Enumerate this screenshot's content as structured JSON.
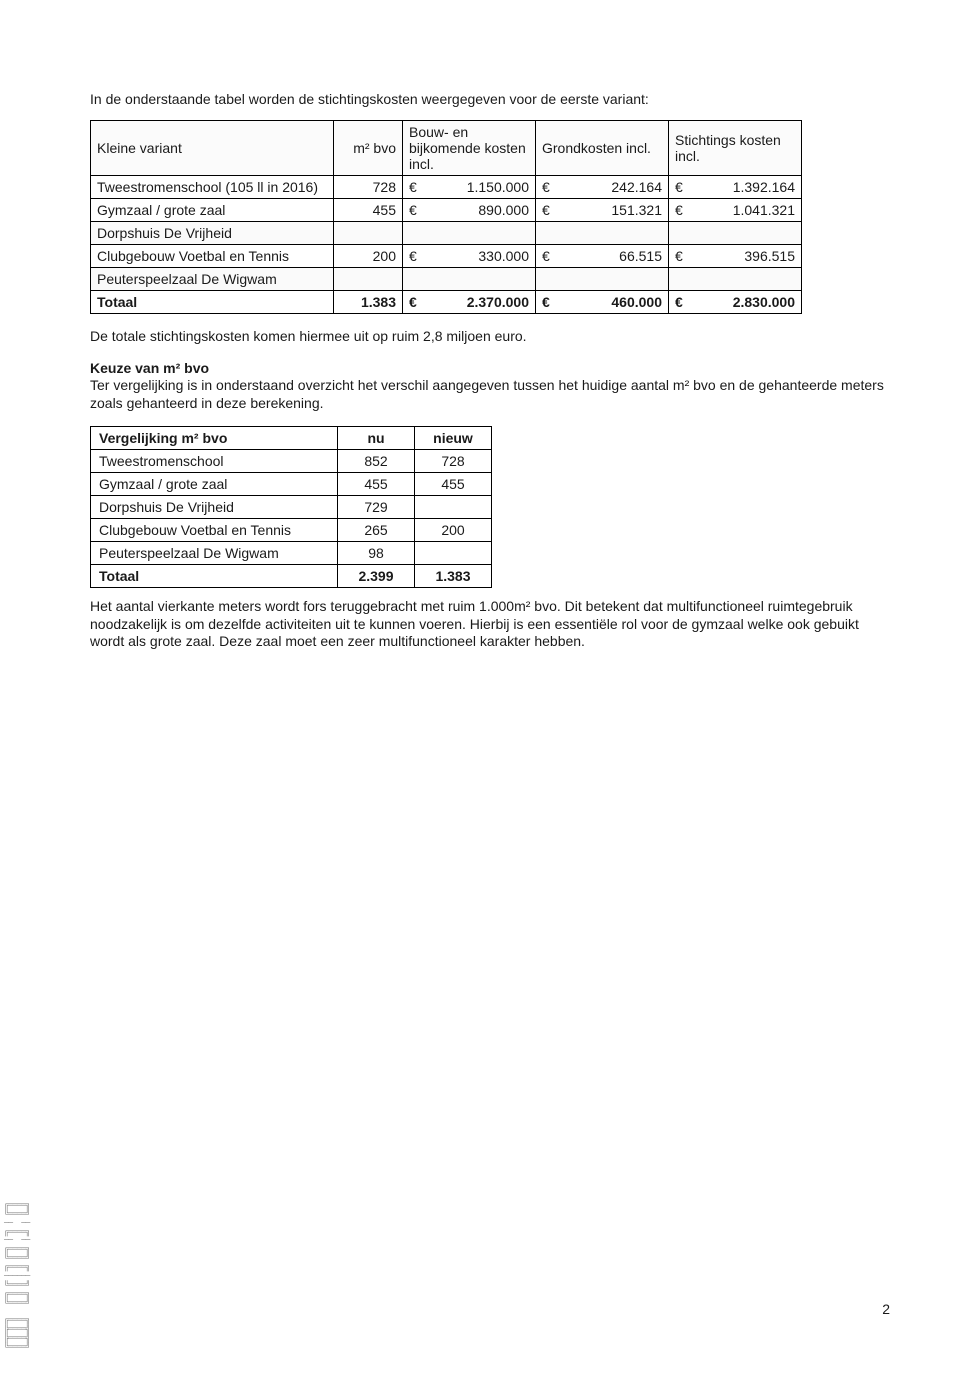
{
  "intro": "In de onderstaande tabel worden de stichtingskosten weergegeven voor de eerste variant:",
  "t1": {
    "headers": {
      "c0": "Kleine variant",
      "c1": "m² bvo",
      "c2": "Bouw- en bijkomende kosten incl.",
      "c3": "Grondkosten incl.",
      "c4": "Stichtings kosten incl."
    },
    "rows": [
      {
        "label": "Tweestromenschool (105 ll in 2016)",
        "m2": "728",
        "c2": "1.150.000",
        "c3": "242.164",
        "c4": "1.392.164"
      },
      {
        "label": "Gymzaal / grote zaal",
        "m2": "455",
        "c2": "890.000",
        "c3": "151.321",
        "c4": "1.041.321"
      },
      {
        "label": "Dorpshuis De Vrijheid",
        "m2": "",
        "c2": "",
        "c3": "",
        "c4": ""
      },
      {
        "label": "Clubgebouw Voetbal en Tennis",
        "m2": "200",
        "c2": "330.000",
        "c3": "66.515",
        "c4": "396.515"
      },
      {
        "label": "Peuterspeelzaal De Wigwam",
        "m2": "",
        "c2": "",
        "c3": "",
        "c4": ""
      }
    ],
    "total": {
      "label": "Totaal",
      "m2": "1.383",
      "c2": "2.370.000",
      "c3": "460.000",
      "c4": "2.830.000"
    }
  },
  "para1": "De totale stichtingskosten komen hiermee uit op ruim 2,8 miljoen euro.",
  "keuze_h": "Keuze van m² bvo",
  "keuze_p": "Ter vergelijking is in onderstaand overzicht het verschil aangegeven tussen het huidige aantal m² bvo en de gehanteerde meters zoals gehanteerd in deze berekening.",
  "t2": {
    "headers": {
      "c0": "Vergelijking m² bvo",
      "c1": "nu",
      "c2": "nieuw"
    },
    "rows": [
      {
        "label": "Tweestromenschool",
        "nu": "852",
        "nieuw": "728"
      },
      {
        "label": "Gymzaal / grote zaal",
        "nu": "455",
        "nieuw": "455"
      },
      {
        "label": "Dorpshuis De Vrijheid",
        "nu": "729",
        "nieuw": ""
      },
      {
        "label": "Clubgebouw Voetbal en Tennis",
        "nu": "265",
        "nieuw": "200"
      },
      {
        "label": "Peuterspeelzaal De Wigwam",
        "nu": "98",
        "nieuw": ""
      }
    ],
    "total": {
      "label": "Totaal",
      "nu": "2.399",
      "nieuw": "1.383"
    }
  },
  "para2": "Het aantal vierkante meters wordt fors teruggebracht met ruim 1.000m² bvo. Dit betekent dat multifunctioneel ruimtegebruik noodzakelijk is om dezelfde activiteiten uit te kunnen voeren. Hierbij is een essentiële rol voor de gymzaal welke ook gebuikt wordt als grote zaal. Deze zaal moet een zeer multifunctioneel karakter hebben.",
  "page_number": "2",
  "euro": "€"
}
